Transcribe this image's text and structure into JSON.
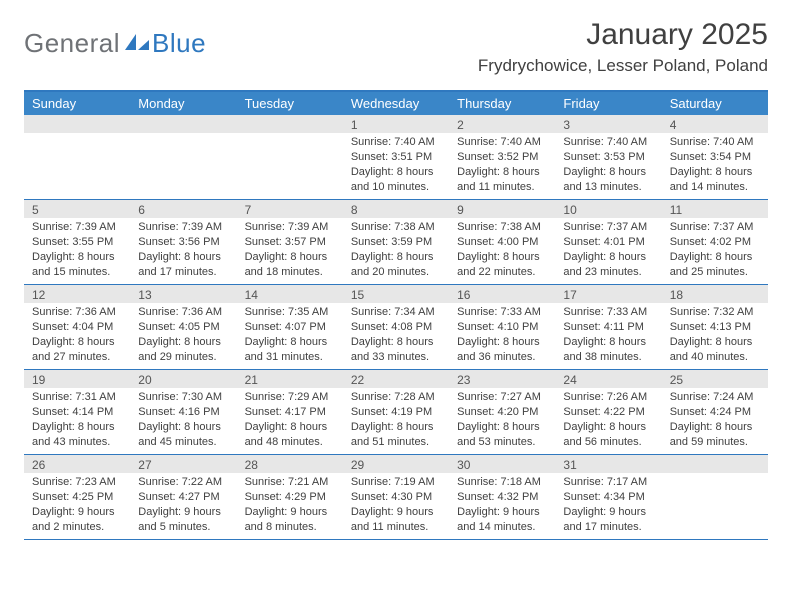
{
  "brand": {
    "word1": "General",
    "word2": "Blue"
  },
  "title": {
    "month": "January 2025",
    "location": "Frydrychowice, Lesser Poland, Poland"
  },
  "colors": {
    "accent": "#3a86c8",
    "accent_border": "#2f78bf",
    "daynum_bg": "#e7e7e7",
    "text": "#404040",
    "logo_gray": "#6f7276"
  },
  "dow": [
    "Sunday",
    "Monday",
    "Tuesday",
    "Wednesday",
    "Thursday",
    "Friday",
    "Saturday"
  ],
  "weeks": [
    [
      {
        "n": "",
        "sr": "",
        "ss": "",
        "dl": "",
        "empty": true
      },
      {
        "n": "",
        "sr": "",
        "ss": "",
        "dl": "",
        "empty": true
      },
      {
        "n": "",
        "sr": "",
        "ss": "",
        "dl": "",
        "empty": true
      },
      {
        "n": "1",
        "sr": "Sunrise: 7:40 AM",
        "ss": "Sunset: 3:51 PM",
        "dl": "Daylight: 8 hours and 10 minutes."
      },
      {
        "n": "2",
        "sr": "Sunrise: 7:40 AM",
        "ss": "Sunset: 3:52 PM",
        "dl": "Daylight: 8 hours and 11 minutes."
      },
      {
        "n": "3",
        "sr": "Sunrise: 7:40 AM",
        "ss": "Sunset: 3:53 PM",
        "dl": "Daylight: 8 hours and 13 minutes."
      },
      {
        "n": "4",
        "sr": "Sunrise: 7:40 AM",
        "ss": "Sunset: 3:54 PM",
        "dl": "Daylight: 8 hours and 14 minutes."
      }
    ],
    [
      {
        "n": "5",
        "sr": "Sunrise: 7:39 AM",
        "ss": "Sunset: 3:55 PM",
        "dl": "Daylight: 8 hours and 15 minutes."
      },
      {
        "n": "6",
        "sr": "Sunrise: 7:39 AM",
        "ss": "Sunset: 3:56 PM",
        "dl": "Daylight: 8 hours and 17 minutes."
      },
      {
        "n": "7",
        "sr": "Sunrise: 7:39 AM",
        "ss": "Sunset: 3:57 PM",
        "dl": "Daylight: 8 hours and 18 minutes."
      },
      {
        "n": "8",
        "sr": "Sunrise: 7:38 AM",
        "ss": "Sunset: 3:59 PM",
        "dl": "Daylight: 8 hours and 20 minutes."
      },
      {
        "n": "9",
        "sr": "Sunrise: 7:38 AM",
        "ss": "Sunset: 4:00 PM",
        "dl": "Daylight: 8 hours and 22 minutes."
      },
      {
        "n": "10",
        "sr": "Sunrise: 7:37 AM",
        "ss": "Sunset: 4:01 PM",
        "dl": "Daylight: 8 hours and 23 minutes."
      },
      {
        "n": "11",
        "sr": "Sunrise: 7:37 AM",
        "ss": "Sunset: 4:02 PM",
        "dl": "Daylight: 8 hours and 25 minutes."
      }
    ],
    [
      {
        "n": "12",
        "sr": "Sunrise: 7:36 AM",
        "ss": "Sunset: 4:04 PM",
        "dl": "Daylight: 8 hours and 27 minutes."
      },
      {
        "n": "13",
        "sr": "Sunrise: 7:36 AM",
        "ss": "Sunset: 4:05 PM",
        "dl": "Daylight: 8 hours and 29 minutes."
      },
      {
        "n": "14",
        "sr": "Sunrise: 7:35 AM",
        "ss": "Sunset: 4:07 PM",
        "dl": "Daylight: 8 hours and 31 minutes."
      },
      {
        "n": "15",
        "sr": "Sunrise: 7:34 AM",
        "ss": "Sunset: 4:08 PM",
        "dl": "Daylight: 8 hours and 33 minutes."
      },
      {
        "n": "16",
        "sr": "Sunrise: 7:33 AM",
        "ss": "Sunset: 4:10 PM",
        "dl": "Daylight: 8 hours and 36 minutes."
      },
      {
        "n": "17",
        "sr": "Sunrise: 7:33 AM",
        "ss": "Sunset: 4:11 PM",
        "dl": "Daylight: 8 hours and 38 minutes."
      },
      {
        "n": "18",
        "sr": "Sunrise: 7:32 AM",
        "ss": "Sunset: 4:13 PM",
        "dl": "Daylight: 8 hours and 40 minutes."
      }
    ],
    [
      {
        "n": "19",
        "sr": "Sunrise: 7:31 AM",
        "ss": "Sunset: 4:14 PM",
        "dl": "Daylight: 8 hours and 43 minutes."
      },
      {
        "n": "20",
        "sr": "Sunrise: 7:30 AM",
        "ss": "Sunset: 4:16 PM",
        "dl": "Daylight: 8 hours and 45 minutes."
      },
      {
        "n": "21",
        "sr": "Sunrise: 7:29 AM",
        "ss": "Sunset: 4:17 PM",
        "dl": "Daylight: 8 hours and 48 minutes."
      },
      {
        "n": "22",
        "sr": "Sunrise: 7:28 AM",
        "ss": "Sunset: 4:19 PM",
        "dl": "Daylight: 8 hours and 51 minutes."
      },
      {
        "n": "23",
        "sr": "Sunrise: 7:27 AM",
        "ss": "Sunset: 4:20 PM",
        "dl": "Daylight: 8 hours and 53 minutes."
      },
      {
        "n": "24",
        "sr": "Sunrise: 7:26 AM",
        "ss": "Sunset: 4:22 PM",
        "dl": "Daylight: 8 hours and 56 minutes."
      },
      {
        "n": "25",
        "sr": "Sunrise: 7:24 AM",
        "ss": "Sunset: 4:24 PM",
        "dl": "Daylight: 8 hours and 59 minutes."
      }
    ],
    [
      {
        "n": "26",
        "sr": "Sunrise: 7:23 AM",
        "ss": "Sunset: 4:25 PM",
        "dl": "Daylight: 9 hours and 2 minutes."
      },
      {
        "n": "27",
        "sr": "Sunrise: 7:22 AM",
        "ss": "Sunset: 4:27 PM",
        "dl": "Daylight: 9 hours and 5 minutes."
      },
      {
        "n": "28",
        "sr": "Sunrise: 7:21 AM",
        "ss": "Sunset: 4:29 PM",
        "dl": "Daylight: 9 hours and 8 minutes."
      },
      {
        "n": "29",
        "sr": "Sunrise: 7:19 AM",
        "ss": "Sunset: 4:30 PM",
        "dl": "Daylight: 9 hours and 11 minutes."
      },
      {
        "n": "30",
        "sr": "Sunrise: 7:18 AM",
        "ss": "Sunset: 4:32 PM",
        "dl": "Daylight: 9 hours and 14 minutes."
      },
      {
        "n": "31",
        "sr": "Sunrise: 7:17 AM",
        "ss": "Sunset: 4:34 PM",
        "dl": "Daylight: 9 hours and 17 minutes."
      },
      {
        "n": "",
        "sr": "",
        "ss": "",
        "dl": "",
        "empty": true
      }
    ]
  ]
}
